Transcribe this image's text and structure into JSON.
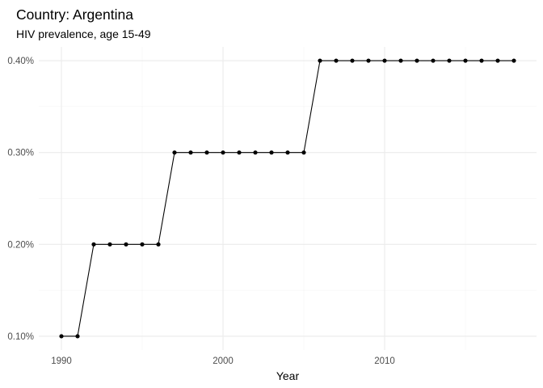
{
  "chart_data": {
    "type": "line",
    "title": "Country: Argentina",
    "subtitle": "HIV prevalence, age 15-49",
    "xlabel": "Year",
    "ylabel": "",
    "x": [
      1990,
      1991,
      1992,
      1993,
      1994,
      1995,
      1996,
      1997,
      1998,
      1999,
      2000,
      2001,
      2002,
      2003,
      2004,
      2005,
      2006,
      2007,
      2008,
      2009,
      2010,
      2011,
      2012,
      2013,
      2014,
      2015,
      2016,
      2017,
      2018
    ],
    "series": [
      {
        "values": [
          0.1,
          0.1,
          0.2,
          0.2,
          0.2,
          0.2,
          0.2,
          0.3,
          0.3,
          0.3,
          0.3,
          0.3,
          0.3,
          0.3,
          0.3,
          0.3,
          0.4,
          0.4,
          0.4,
          0.4,
          0.4,
          0.4,
          0.4,
          0.4,
          0.4,
          0.4,
          0.4,
          0.4,
          0.4
        ],
        "color": "#000000",
        "markers": true
      }
    ],
    "xlim": [
      1988.6,
      2019.4
    ],
    "ylim": [
      0.085,
      0.415
    ],
    "x_ticks": [
      1990,
      2000,
      2010
    ],
    "x_tick_labels": [
      "1990",
      "2000",
      "2010"
    ],
    "x_minor_ticks": [
      1995,
      2005,
      2015
    ],
    "y_ticks": [
      0.1,
      0.2,
      0.3,
      0.4
    ],
    "y_tick_labels": [
      "0.10%",
      "0.20%",
      "0.30%",
      "0.40%"
    ],
    "y_minor_ticks": [
      0.15,
      0.25,
      0.35
    ],
    "grid": true,
    "legend": "none",
    "theme": "minimal"
  }
}
